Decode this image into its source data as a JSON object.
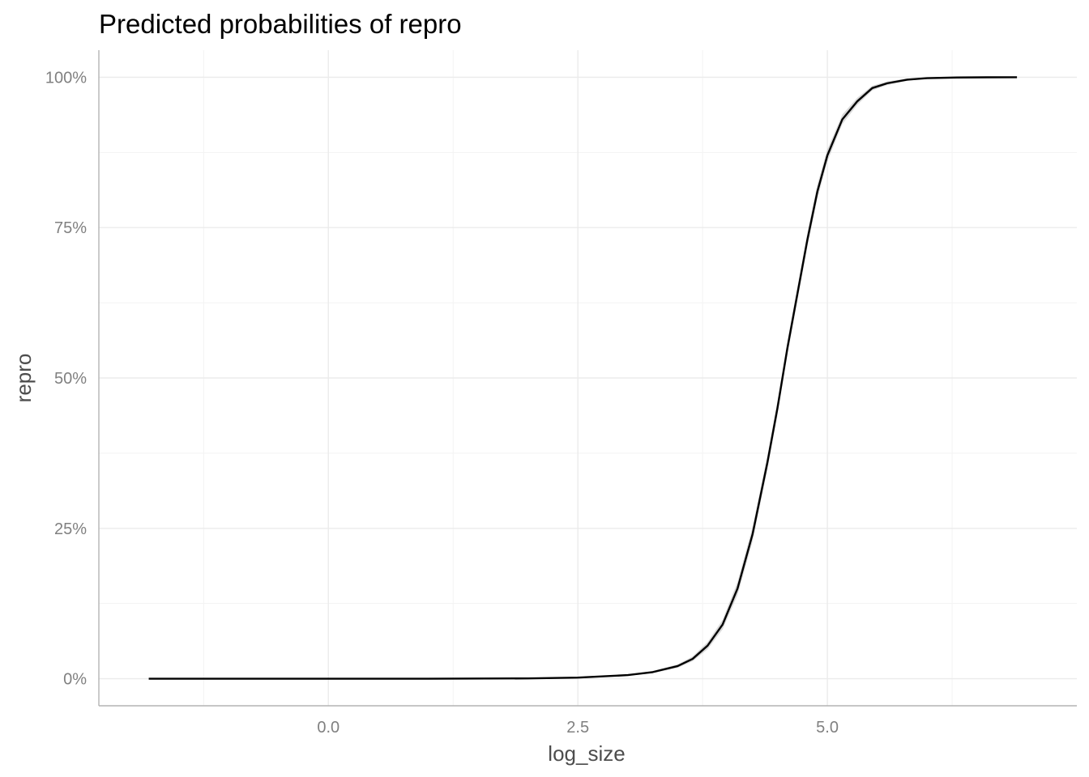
{
  "chart_data": {
    "type": "line",
    "title": "Predicted probabilities of repro",
    "xlabel": "log_size",
    "ylabel": "repro",
    "xlim": [
      -2.3,
      7.5
    ],
    "ylim": [
      -0.045,
      1.045
    ],
    "x_ticks": [
      0.0,
      2.5,
      5.0
    ],
    "x_tick_labels": [
      "0.0",
      "2.5",
      "5.0"
    ],
    "y_ticks": [
      0,
      0.25,
      0.5,
      0.75,
      1.0
    ],
    "y_tick_labels": [
      "0%",
      "25%",
      "50%",
      "75%",
      "100%"
    ],
    "grid": true,
    "legend": "none",
    "colors": {
      "line": "#000000",
      "ribbon": "#d9d9d9",
      "grid": "#ebebeb"
    },
    "series": [
      {
        "x": [
          -1.8,
          -1.0,
          0.0,
          1.0,
          2.0,
          2.5,
          3.0,
          3.25,
          3.5,
          3.65,
          3.8,
          3.95,
          4.1,
          4.25,
          4.4,
          4.5,
          4.6,
          4.7,
          4.8,
          4.9,
          5.0,
          5.15,
          5.3,
          5.45,
          5.6,
          5.8,
          6.0,
          6.3,
          6.6,
          6.9
        ],
        "y": [
          0.0,
          0.0,
          0.0,
          0.0,
          0.0005,
          0.0018,
          0.006,
          0.011,
          0.021,
          0.033,
          0.055,
          0.09,
          0.15,
          0.24,
          0.36,
          0.45,
          0.55,
          0.64,
          0.73,
          0.81,
          0.87,
          0.93,
          0.96,
          0.982,
          0.99,
          0.996,
          0.9985,
          0.9996,
          0.9999,
          1.0
        ],
        "ci_low": [
          0.0,
          0.0,
          0.0,
          0.0,
          0.0004,
          0.0015,
          0.005,
          0.009,
          0.018,
          0.029,
          0.049,
          0.082,
          0.139,
          0.228,
          0.348,
          0.438,
          0.538,
          0.628,
          0.718,
          0.798,
          0.86,
          0.922,
          0.954,
          0.978,
          0.987,
          0.994,
          0.9978,
          0.9993,
          0.9998,
          1.0
        ],
        "ci_high": [
          0.0,
          0.0,
          0.0,
          0.0,
          0.0006,
          0.0021,
          0.007,
          0.013,
          0.024,
          0.037,
          0.061,
          0.098,
          0.161,
          0.252,
          0.372,
          0.462,
          0.562,
          0.652,
          0.742,
          0.822,
          0.88,
          0.938,
          0.966,
          0.986,
          0.993,
          0.998,
          0.9992,
          0.9999,
          1.0,
          1.0
        ]
      }
    ]
  }
}
